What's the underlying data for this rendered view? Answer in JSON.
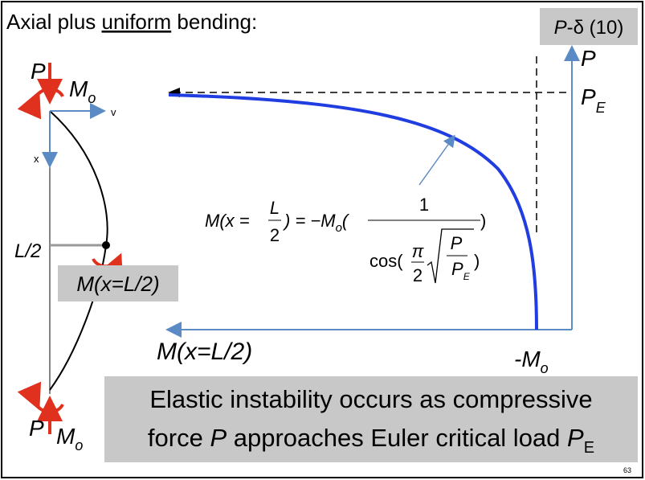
{
  "header": {
    "title": [
      "Axial plus ",
      "uniform",
      " bending:"
    ],
    "tag": [
      "P",
      "-δ (10)"
    ]
  },
  "beam": {
    "top_load": "P",
    "top_moment": [
      "M",
      "o"
    ],
    "v_axis": "v",
    "x_axis": "x",
    "midpoint": "L/2",
    "mid_moment": "M(x=L/2)",
    "bottom_load": "P",
    "bottom_moment": [
      "M",
      "o"
    ]
  },
  "plot": {
    "y_axis": "P",
    "euler": [
      "P",
      "E"
    ],
    "x_axis": "M(x=L/2)",
    "limit": [
      "-M",
      "o"
    ]
  },
  "formula": {
    "lhs": "M(x = ",
    "half_num": "L",
    "half_den": "2",
    "mid": ") = −M",
    "mid_sub": "o",
    "open": "(",
    "num": "1",
    "close": ")",
    "cos": "cos(",
    "pi": "π",
    "pi_den": "2",
    "p": "P",
    "pe": "P",
    "pe_sub": "E",
    "cos_close": ")"
  },
  "note": {
    "line1": "Elastic instability occurs as compressive",
    "line2": [
      "force ",
      "P",
      " approaches Euler critical load ",
      "P",
      "E"
    ]
  },
  "page_number": "63"
}
